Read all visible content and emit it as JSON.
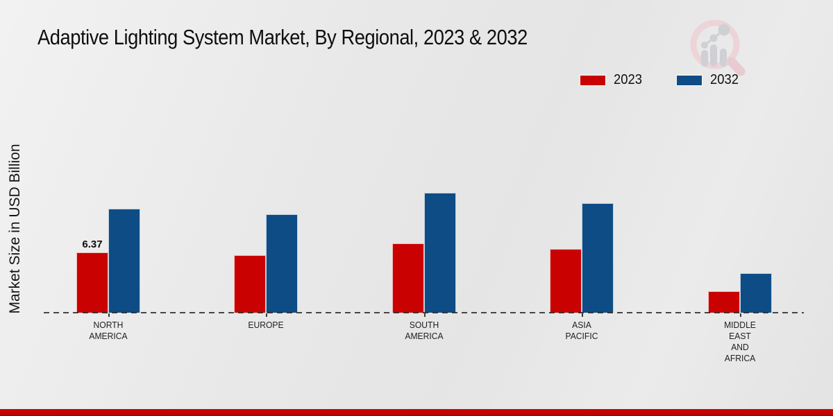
{
  "header": {
    "title": "Adaptive Lighting System Market, By Regional, 2023 & 2032"
  },
  "axes": {
    "ylabel": "Market Size in USD Billion"
  },
  "legend": {
    "items": [
      {
        "label": "2023",
        "color": "#c90101"
      },
      {
        "label": "2032",
        "color": "#0e4c85"
      }
    ]
  },
  "colors": {
    "bar_2023": "#c90101",
    "bar_2032": "#0e4c85",
    "footer_strip": "#c40404",
    "baseline": "#2a2a2a"
  },
  "chart_data": {
    "type": "bar",
    "title": "Adaptive Lighting System Market, By Regional, 2023 & 2032",
    "xlabel": "",
    "ylabel": "Market Size in USD Billion",
    "categories": [
      "NORTH AMERICA",
      "EUROPE",
      "SOUTH AMERICA",
      "ASIA PACIFIC",
      "MIDDLE EAST AND AFRICA"
    ],
    "category_lines": [
      [
        "NORTH",
        "AMERICA"
      ],
      [
        "EUROPE"
      ],
      [
        "SOUTH",
        "AMERICA"
      ],
      [
        "ASIA",
        "PACIFIC"
      ],
      [
        "MIDDLE",
        "EAST",
        "AND",
        "AFRICA"
      ]
    ],
    "series": [
      {
        "name": "2023",
        "color": "#c90101",
        "values": [
          6.37,
          6.1,
          7.3,
          6.7,
          2.3
        ]
      },
      {
        "name": "2032",
        "color": "#0e4c85",
        "values": [
          11.0,
          10.4,
          12.7,
          11.6,
          4.2
        ]
      }
    ],
    "annotations": [
      {
        "series_index": 0,
        "category_index": 0,
        "text": "6.37"
      }
    ],
    "ylim": [
      0,
      14
    ],
    "grid": false,
    "legend_position": "top-right",
    "baseline_style": "dashed"
  }
}
